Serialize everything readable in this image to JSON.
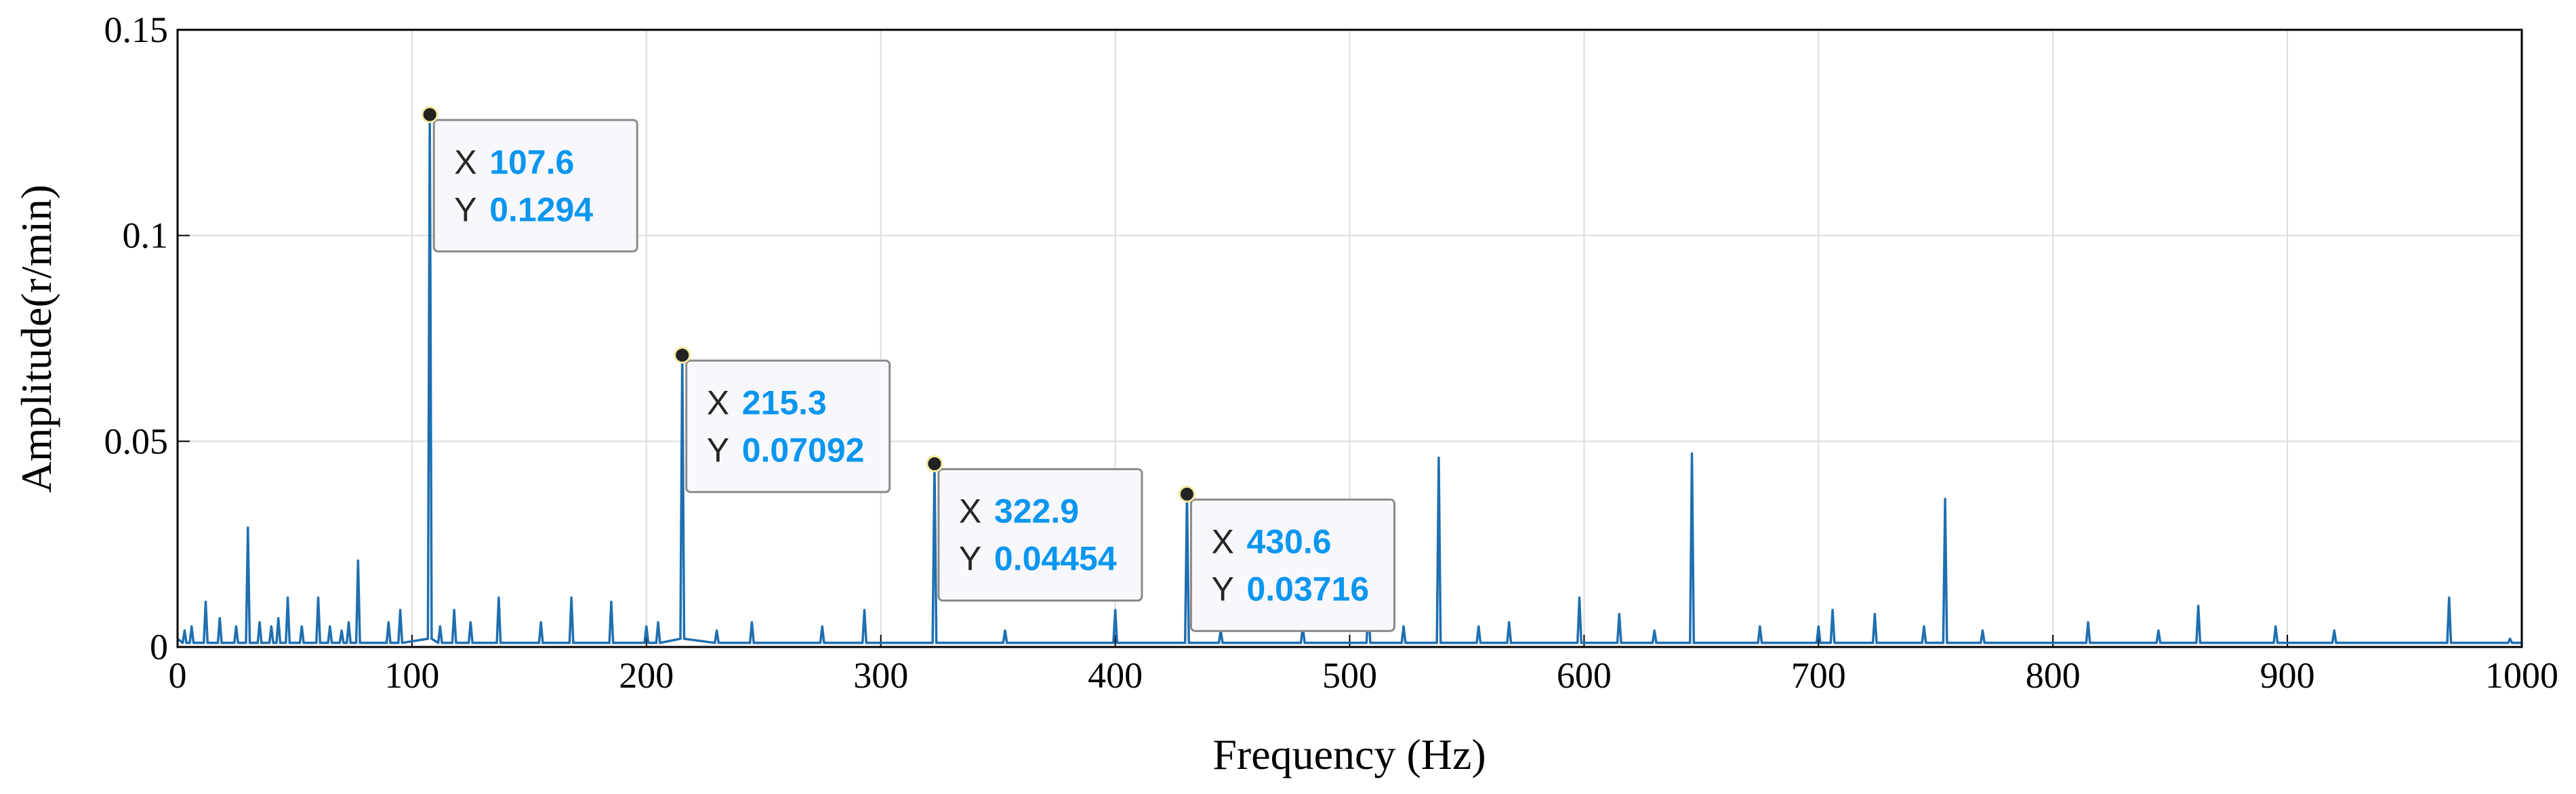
{
  "chart_data": {
    "type": "line",
    "xlabel": "Frequency (Hz)",
    "ylabel": "Amplitude(r/min)",
    "color": "#1f6fb0",
    "grid": true,
    "xlim": [
      0,
      1000
    ],
    "xticks": [
      0,
      100,
      200,
      300,
      400,
      500,
      600,
      700,
      800,
      900,
      1000
    ],
    "ylim": [
      0,
      0.15
    ],
    "yticks": [
      0,
      0.05,
      0.1,
      0.15
    ],
    "x": [
      0,
      2.2,
      3,
      3.8,
      5.2,
      6,
      6.8,
      11.2,
      12,
      12.8,
      17.2,
      18,
      18.8,
      24.2,
      25,
      25.8,
      29.2,
      30,
      30.8,
      34.2,
      35,
      35.8,
      39.2,
      40,
      40.8,
      42.2,
      43,
      43.8,
      46.2,
      47,
      47.8,
      52.2,
      53,
      53.8,
      59.2,
      60,
      60.8,
      64.2,
      65,
      65.8,
      69.2,
      70,
      70.8,
      72.2,
      73,
      73.8,
      76.2,
      77,
      77.8,
      89.2,
      90,
      90.8,
      94.2,
      95,
      95.8,
      106.8,
      107.6,
      108.4,
      111.2,
      112,
      112.8,
      117.2,
      118,
      118.8,
      124.2,
      125,
      125.8,
      136.2,
      137,
      137.8,
      154.2,
      155,
      155.8,
      167.2,
      168,
      168.8,
      184.2,
      185,
      185.8,
      199.2,
      200,
      200.8,
      204.2,
      205,
      205.8,
      214.5,
      215.3,
      216.1,
      229.2,
      230,
      230.8,
      244.2,
      245,
      245.8,
      274.2,
      275,
      275.8,
      292.2,
      293,
      293.8,
      322.1,
      322.9,
      323.7,
      352.2,
      353,
      353.8,
      399.2,
      400,
      400.8,
      429.8,
      430.6,
      431.4,
      444.2,
      445,
      445.8,
      479.2,
      480,
      480.8,
      507.2,
      508,
      508.8,
      522.2,
      523,
      523.8,
      537.2,
      538,
      538.8,
      554.2,
      555,
      555.8,
      567.2,
      568,
      568.8,
      597.2,
      598,
      598.8,
      614.2,
      615,
      615.8,
      629.2,
      630,
      630.8,
      645.2,
      646,
      646.8,
      674.2,
      675,
      675.8,
      699.2,
      700,
      700.8,
      705.2,
      706,
      706.8,
      723.2,
      724,
      724.8,
      744.2,
      745,
      745.8,
      753.2,
      754,
      754.8,
      769.2,
      770,
      770.8,
      814.2,
      815,
      815.8,
      844.2,
      845,
      845.8,
      861.2,
      862,
      862.8,
      894.2,
      895,
      895.8,
      919.2,
      920,
      920.8,
      968.2,
      969,
      969.8,
      994.2,
      995,
      995.8,
      1000
    ],
    "values": [
      0.002,
      0.001,
      0.004,
      0.001,
      0.001,
      0.005,
      0.001,
      0.001,
      0.011,
      0.001,
      0.001,
      0.007,
      0.001,
      0.001,
      0.005,
      0.001,
      0.001,
      0.029,
      0.001,
      0.001,
      0.006,
      0.001,
      0.001,
      0.005,
      0.001,
      0.001,
      0.007,
      0.001,
      0.001,
      0.012,
      0.001,
      0.001,
      0.005,
      0.001,
      0.001,
      0.012,
      0.001,
      0.001,
      0.005,
      0.001,
      0.001,
      0.004,
      0.001,
      0.001,
      0.006,
      0.001,
      0.001,
      0.021,
      0.001,
      0.001,
      0.006,
      0.001,
      0.001,
      0.009,
      0.001,
      0.002,
      0.1294,
      0.002,
      0.001,
      0.005,
      0.001,
      0.001,
      0.009,
      0.001,
      0.001,
      0.006,
      0.001,
      0.001,
      0.012,
      0.001,
      0.001,
      0.006,
      0.001,
      0.001,
      0.012,
      0.001,
      0.001,
      0.011,
      0.001,
      0.001,
      0.005,
      0.001,
      0.001,
      0.006,
      0.001,
      0.002,
      0.07092,
      0.002,
      0.001,
      0.004,
      0.001,
      0.001,
      0.006,
      0.001,
      0.001,
      0.005,
      0.001,
      0.001,
      0.009,
      0.001,
      0.001,
      0.04454,
      0.001,
      0.001,
      0.004,
      0.001,
      0.001,
      0.009,
      0.001,
      0.001,
      0.03716,
      0.001,
      0.001,
      0.004,
      0.001,
      0.001,
      0.005,
      0.001,
      0.001,
      0.01,
      0.001,
      0.001,
      0.005,
      0.001,
      0.001,
      0.046,
      0.001,
      0.001,
      0.005,
      0.001,
      0.001,
      0.006,
      0.001,
      0.001,
      0.012,
      0.001,
      0.001,
      0.008,
      0.001,
      0.001,
      0.004,
      0.001,
      0.001,
      0.047,
      0.001,
      0.001,
      0.005,
      0.001,
      0.001,
      0.005,
      0.001,
      0.001,
      0.009,
      0.001,
      0.001,
      0.008,
      0.001,
      0.001,
      0.005,
      0.001,
      0.001,
      0.036,
      0.001,
      0.001,
      0.004,
      0.001,
      0.001,
      0.006,
      0.001,
      0.001,
      0.004,
      0.001,
      0.001,
      0.01,
      0.001,
      0.001,
      0.005,
      0.001,
      0.001,
      0.004,
      0.001,
      0.001,
      0.012,
      0.001,
      0.001,
      0.002,
      0.001,
      0.001
    ],
    "datatips": [
      {
        "x_name": "X",
        "x": 107.6,
        "y_name": "Y",
        "y": 0.1294
      },
      {
        "x_name": "X",
        "x": 215.3,
        "y_name": "Y",
        "y": 0.07092
      },
      {
        "x_name": "X",
        "x": 322.9,
        "y_name": "Y",
        "y": 0.04454
      },
      {
        "x_name": "X",
        "x": 430.6,
        "y_name": "Y",
        "y": 0.03716
      }
    ]
  }
}
